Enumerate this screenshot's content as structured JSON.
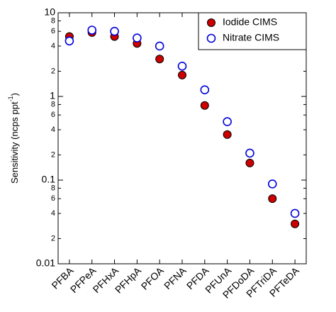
{
  "chart_data": {
    "type": "scatter",
    "ylabel": {
      "text": "Sensitivity (ncps ppt",
      "sup": "-1",
      "end": ")"
    },
    "categories": [
      "PFBA",
      "PFPeA",
      "PFHxA",
      "PFHpA",
      "PFOA",
      "PFNA",
      "PFDA",
      "PFUnA",
      "PFDoDA",
      "PFTriDA",
      "PFTeDA"
    ],
    "series": [
      {
        "name": "Iodide CIMS",
        "color": "#cc0000",
        "filled": true,
        "values": [
          5.2,
          5.8,
          5.2,
          4.3,
          2.8,
          1.8,
          0.78,
          0.35,
          0.16,
          0.06,
          0.03
        ]
      },
      {
        "name": "Nitrate CIMS",
        "color": "#0000dd",
        "filled": false,
        "values": [
          4.6,
          6.2,
          6,
          5,
          4,
          2.3,
          1.2,
          0.5,
          0.21,
          0.09,
          0.04
        ]
      }
    ],
    "ylim": [
      0.01,
      10
    ],
    "ylog": true,
    "yticks": [
      0.01,
      {
        "value": 0.02,
        "label": "2"
      },
      {
        "value": 0.04,
        "label": "4"
      },
      {
        "value": 0.06,
        "label": "6"
      },
      {
        "value": 0.08,
        "label": "8"
      },
      0.1,
      {
        "value": 0.2,
        "label": "2"
      },
      {
        "value": 0.4,
        "label": "4"
      },
      {
        "value": 0.6,
        "label": "6"
      },
      {
        "value": 0.8,
        "label": "8"
      },
      1,
      {
        "value": 2,
        "label": "2"
      },
      {
        "value": 4,
        "label": "4"
      },
      {
        "value": 6,
        "label": "6"
      },
      {
        "value": 8,
        "label": "8"
      },
      10
    ],
    "legend": "upper right"
  }
}
